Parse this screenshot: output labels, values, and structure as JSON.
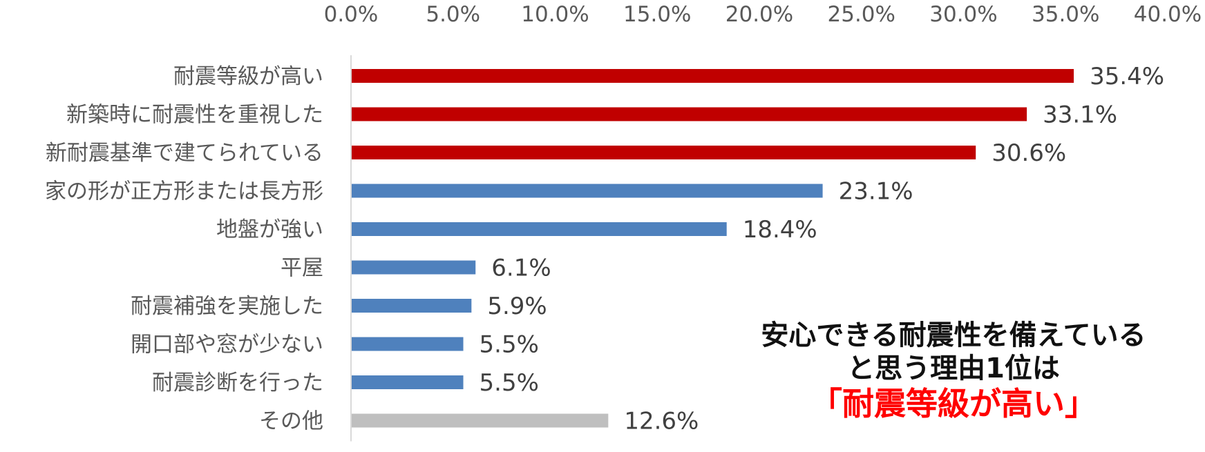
{
  "chart_data": {
    "type": "bar",
    "orientation": "horizontal",
    "categories": [
      "耐震等級が高い",
      "新築時に耐震性を重視した",
      "新耐震基準で建てられている",
      "家の形が正方形または長方形",
      "地盤が強い",
      "平屋",
      "耐震補強を実施した",
      "開口部や窓が少ない",
      "耐震診断を行った",
      "その他"
    ],
    "values": [
      35.4,
      33.1,
      30.6,
      23.1,
      18.4,
      6.1,
      5.9,
      5.5,
      5.5,
      12.6
    ],
    "value_labels": [
      "35.4%",
      "33.1%",
      "30.6%",
      "23.1%",
      "18.4%",
      "6.1%",
      "5.9%",
      "5.5%",
      "5.5%",
      "12.6%"
    ],
    "bar_colors": [
      "#c00000",
      "#c00000",
      "#c00000",
      "#4f81bd",
      "#4f81bd",
      "#4f81bd",
      "#4f81bd",
      "#4f81bd",
      "#4f81bd",
      "#bfbfbf"
    ],
    "xlim": [
      0,
      40
    ],
    "x_ticks": [
      0,
      5,
      10,
      15,
      20,
      25,
      30,
      35,
      40
    ],
    "x_tick_labels": [
      "0.0%",
      "5.0%",
      "10.0%",
      "15.0%",
      "20.0%",
      "25.0%",
      "30.0%",
      "35.0%",
      "40.0%"
    ],
    "x_axis_position": "top",
    "grid": false,
    "legend": "none",
    "title": "",
    "xlabel": "",
    "ylabel": ""
  },
  "callout": {
    "line1": "安心できる耐震性を備えている",
    "line2": "と思う理由1位は",
    "highlight": "「耐震等級が高い」"
  }
}
